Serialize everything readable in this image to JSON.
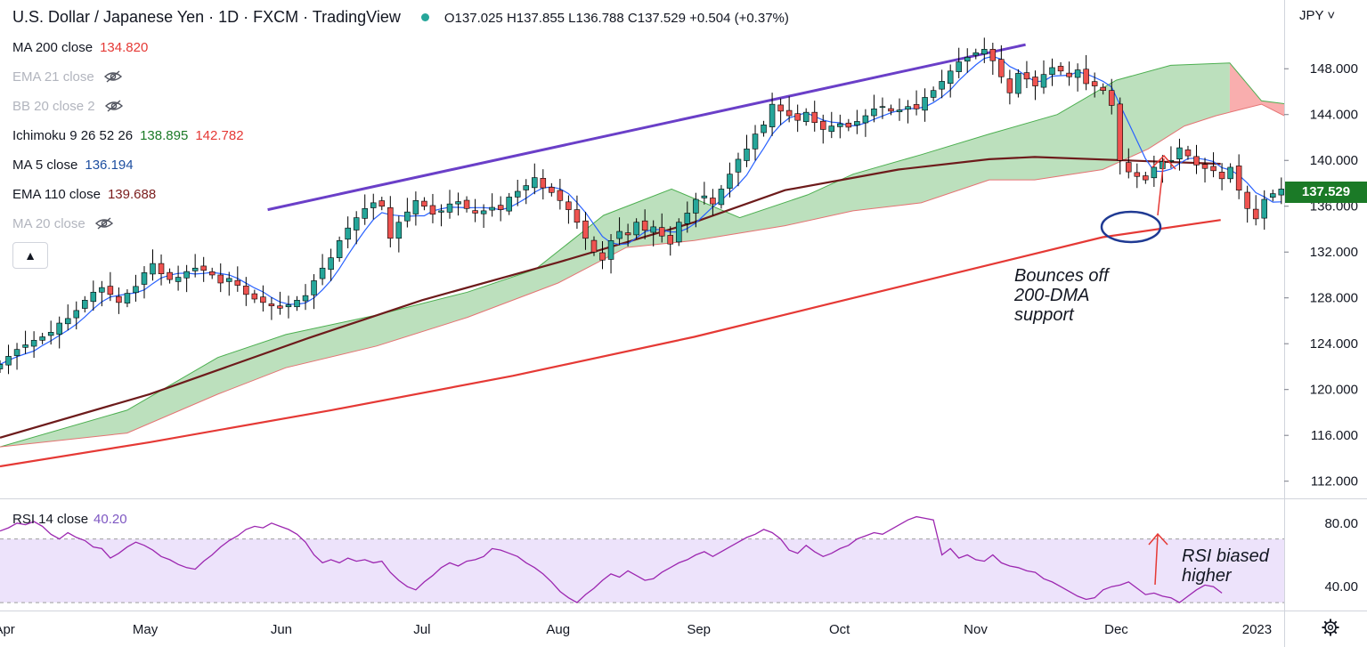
{
  "header": {
    "title": "U.S. Dollar / Japanese Yen · 1D · FXCM · TradingView",
    "ohlc": "O137.025  H137.855  L136.788  C137.529  +0.504 (+0.37%)"
  },
  "legend": [
    {
      "label": "MA 200 close",
      "values": [
        "134.820"
      ],
      "colors": [
        "#e53935"
      ],
      "hidden": false
    },
    {
      "label": "EMA 21 close",
      "values": [],
      "colors": [],
      "hidden": true
    },
    {
      "label": "BB 20 close 2",
      "values": [],
      "colors": [],
      "hidden": true
    },
    {
      "label": "Ichimoku 9 26 52 26",
      "values": [
        "138.895",
        "142.782"
      ],
      "colors": [
        "#1b7a27",
        "#e53935"
      ],
      "hidden": false
    },
    {
      "label": "MA 5 close",
      "values": [
        "136.194"
      ],
      "colors": [
        "#1e4fa0"
      ],
      "hidden": false
    },
    {
      "label": "EMA 110 close",
      "values": [
        "139.688"
      ],
      "colors": [
        "#7a1c1c"
      ],
      "hidden": false
    },
    {
      "label": "MA 20 close",
      "values": [],
      "colors": [],
      "hidden": true
    }
  ],
  "currency": "JPY",
  "current_price": "137.529",
  "rsi_legend": {
    "label": "RSI 14 close",
    "value": "40.20"
  },
  "annotations": {
    "price_note": [
      "Bounces off",
      "200-DMA",
      "support"
    ],
    "rsi_note": [
      "RSI biased",
      "higher"
    ]
  },
  "colors": {
    "up": "#26a69a",
    "down": "#ef5350",
    "ma200": "#e53935",
    "ema110": "#6d1b1b",
    "ma5": "#2962ff",
    "trend": "#6a3fc8",
    "cloud_bull": "#a5d6a7",
    "cloud_bear": "#f8a5a5",
    "rsi": "#9c27b0",
    "rsi_band": "#ede3fb",
    "ellipse": "#1f3a93",
    "arrow": "#e53935"
  },
  "chart_data": {
    "type": "candlestick",
    "title": "U.S. Dollar / Japanese Yen · 1D · FXCM",
    "ylabel": "JPY",
    "ylim": [
      110.5,
      154
    ],
    "y_ticks": [
      "148.000",
      "144.000",
      "140.000",
      "136.000",
      "132.000",
      "128.000",
      "124.000",
      "120.000",
      "116.000",
      "112.000"
    ],
    "y_tick_values": [
      148,
      144,
      140,
      136,
      132,
      128,
      124,
      120,
      116,
      112
    ],
    "x_tick_labels": [
      "Apr",
      "May",
      "Jun",
      "Jul",
      "Aug",
      "Sep",
      "Oct",
      "Nov",
      "Dec",
      "2023"
    ],
    "x_tick_days": [
      -12,
      19,
      49,
      80,
      110,
      141,
      172,
      202,
      233,
      264
    ],
    "x_range_days": [
      -13,
      270
    ],
    "closes": [
      122.2,
      122.9,
      123.5,
      123.9,
      124.3,
      124.6,
      125.0,
      125.8,
      126.2,
      126.9,
      127.8,
      128.5,
      128.9,
      128.3,
      127.6,
      128.4,
      129.0,
      130.2,
      131.0,
      130.1,
      129.6,
      129.8,
      130.3,
      130.6,
      130.4,
      130.0,
      129.3,
      129.7,
      129.1,
      128.3,
      127.9,
      127.6,
      127.3,
      127.1,
      127.4,
      127.8,
      128.2,
      129.5,
      130.6,
      131.5,
      133.0,
      134.1,
      135.0,
      135.8,
      136.3,
      136.0,
      133.2,
      134.6,
      135.5,
      136.5,
      136.0,
      135.3,
      135.6,
      136.2,
      136.4,
      135.8,
      135.4,
      135.6,
      135.9,
      135.7,
      136.8,
      137.3,
      137.8,
      138.5,
      137.6,
      137.2,
      136.5,
      135.7,
      134.6,
      133.2,
      132.0,
      131.3,
      133.0,
      133.8,
      133.5,
      134.6,
      133.9,
      134.2,
      133.4,
      132.7,
      134.6,
      135.4,
      136.6,
      136.9,
      136.2,
      137.5,
      138.8,
      140.1,
      141.0,
      142.3,
      143.1,
      144.9,
      144.3,
      143.9,
      143.5,
      144.2,
      143.3,
      142.7,
      143.0,
      143.2,
      142.9,
      143.4,
      143.9,
      144.5,
      144.7,
      144.3,
      144.4,
      144.7,
      144.5,
      145.5,
      146.1,
      146.9,
      147.8,
      148.6,
      149.0,
      149.4,
      149.7,
      148.7,
      147.3,
      145.9,
      147.6,
      147.1,
      146.5,
      147.5,
      148.1,
      147.8,
      147.3,
      147.9,
      146.7,
      146.5,
      146.1,
      144.8,
      140.0,
      139.0,
      138.6,
      138.3,
      139.4,
      139.9,
      140.0,
      141.1,
      140.4,
      139.6,
      139.3,
      139.1,
      138.4,
      139.4,
      137.4,
      135.8,
      134.9,
      136.6,
      137.1,
      137.5
    ],
    "close_start_day": -13,
    "close_step_days": 1.87,
    "ma200": [
      [
        -13,
        113.3
      ],
      [
        20,
        115.4
      ],
      [
        60,
        118.2
      ],
      [
        100,
        121.2
      ],
      [
        140,
        124.6
      ],
      [
        170,
        127.5
      ],
      [
        200,
        130.4
      ],
      [
        230,
        133.3
      ],
      [
        256,
        134.8
      ]
    ],
    "ema110": [
      [
        -13,
        115.8
      ],
      [
        20,
        119.6
      ],
      [
        55,
        124.5
      ],
      [
        80,
        127.8
      ],
      [
        110,
        131.1
      ],
      [
        140,
        134.6
      ],
      [
        160,
        137.4
      ],
      [
        185,
        139.2
      ],
      [
        205,
        140.1
      ],
      [
        215,
        140.3
      ],
      [
        235,
        140.0
      ],
      [
        256,
        139.7
      ]
    ],
    "cloud_upper": [
      [
        -13,
        115.0
      ],
      [
        15,
        118.2
      ],
      [
        35,
        122.8
      ],
      [
        50,
        124.8
      ],
      [
        70,
        126.5
      ],
      [
        90,
        128.5
      ],
      [
        105,
        130.5
      ],
      [
        120,
        135.2
      ],
      [
        135,
        137.5
      ],
      [
        150,
        135.0
      ],
      [
        165,
        137.0
      ],
      [
        175,
        138.8
      ],
      [
        190,
        140.5
      ],
      [
        205,
        142.3
      ],
      [
        220,
        144.0
      ],
      [
        233,
        147.0
      ],
      [
        245,
        148.3
      ],
      [
        258,
        148.5
      ],
      [
        265,
        145.2
      ],
      [
        275,
        144.7
      ],
      [
        285,
        140.5
      ]
    ],
    "cloud_lower": [
      [
        -13,
        115.0
      ],
      [
        15,
        116.2
      ],
      [
        35,
        119.6
      ],
      [
        50,
        121.9
      ],
      [
        70,
        123.8
      ],
      [
        90,
        126.3
      ],
      [
        110,
        129.3
      ],
      [
        125,
        132.4
      ],
      [
        140,
        133.0
      ],
      [
        160,
        134.3
      ],
      [
        175,
        135.6
      ],
      [
        190,
        136.3
      ],
      [
        205,
        138.3
      ],
      [
        215,
        138.3
      ],
      [
        230,
        139.2
      ],
      [
        240,
        141.0
      ],
      [
        248,
        143.0
      ],
      [
        255,
        143.9
      ],
      [
        265,
        144.9
      ],
      [
        275,
        142.9
      ],
      [
        285,
        141.5
      ]
    ],
    "cloud_bear_start_day": 258,
    "trendline": [
      [
        46,
        135.7
      ],
      [
        213,
        150.1
      ]
    ],
    "rsi": {
      "ylim": [
        25,
        95
      ],
      "y_ticks": [
        "80.00",
        "40.00"
      ],
      "y_tick_values": [
        80,
        40
      ],
      "band": [
        30,
        70
      ],
      "start_day": -13,
      "step_days": 1.87,
      "values": [
        75,
        77,
        80,
        79,
        81,
        78,
        73,
        70,
        74,
        71,
        69,
        65,
        64,
        58,
        61,
        65,
        68,
        66,
        63,
        59,
        57,
        54,
        52,
        51,
        56,
        60,
        65,
        69,
        72,
        76,
        78,
        77,
        80,
        78,
        76,
        73,
        68,
        60,
        55,
        57,
        55,
        58,
        56,
        57,
        55,
        56,
        49,
        44,
        40,
        38,
        43,
        47,
        52,
        55,
        53,
        56,
        57,
        59,
        64,
        63,
        61,
        59,
        55,
        52,
        48,
        43,
        37,
        33,
        30,
        35,
        39,
        44,
        48,
        46,
        50,
        47,
        44,
        45,
        49,
        52,
        55,
        57,
        60,
        62,
        59,
        62,
        65,
        68,
        71,
        73,
        76,
        74,
        70,
        63,
        61,
        66,
        62,
        59,
        61,
        64,
        66,
        70,
        72,
        74,
        73,
        76,
        79,
        82,
        84,
        83,
        82,
        60,
        64,
        58,
        60,
        57,
        56,
        60,
        55,
        53,
        52,
        50,
        49,
        45,
        43,
        40,
        37,
        34,
        32,
        33,
        38,
        40,
        41,
        43,
        39,
        35,
        36,
        34,
        33,
        30,
        34,
        38,
        41,
        40,
        36
      ]
    }
  }
}
